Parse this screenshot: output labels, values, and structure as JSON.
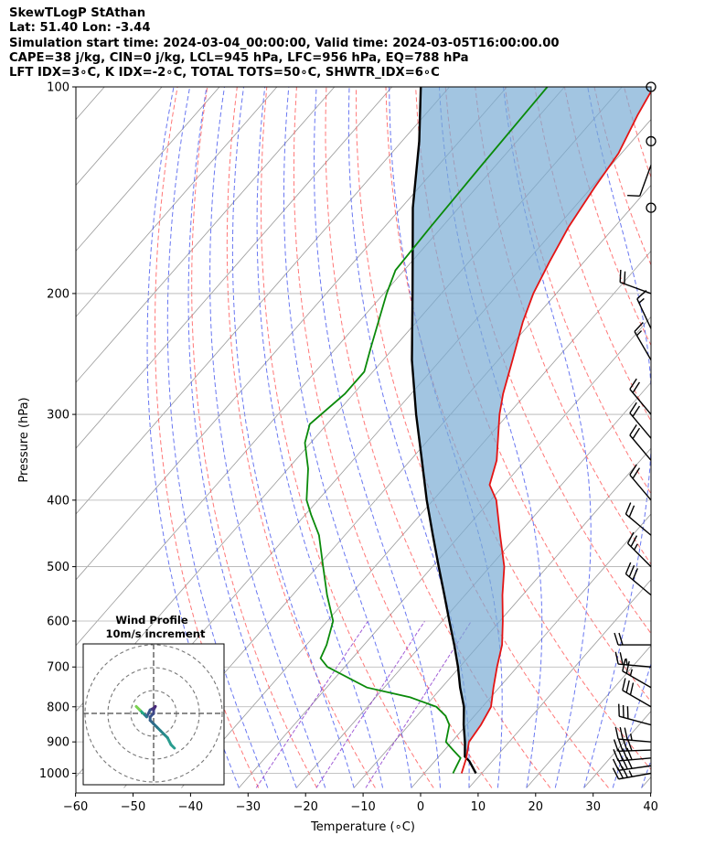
{
  "header": {
    "line1": "SkewTLogP StAthan",
    "line2": "Lat: 51.40   Lon: -3.44",
    "line3": "Simulation start time: 2024-03-04_00:00:00, Valid time: 2024-03-05T16:00:00.00",
    "line4": "CAPE=38 j/kg, CIN=0 j/kg, LCL=945 hPa, LFC=956 hPa, EQ=788 hPa",
    "line5": "LFT IDX=3∘C, K IDX=-2∘C, TOTAL TOTS=50∘C, SHWTR_IDX=6∘C"
  },
  "chart_data": {
    "type": "line",
    "xlabel": "Temperature (∘C)",
    "ylabel": "Pressure (hPa)",
    "xlim": [
      -60,
      40
    ],
    "ylim": [
      1050,
      100
    ],
    "y_scale": "log",
    "x_ticks": [
      "−60",
      "−50",
      "−40",
      "−30",
      "−20",
      "−10",
      "0",
      "10",
      "20",
      "30",
      "40"
    ],
    "y_ticks": [
      "1000",
      "900",
      "800",
      "700",
      "600",
      "500",
      "400",
      "300",
      "200",
      "100"
    ],
    "grid": true,
    "colors": {
      "temperature": "#e41414",
      "dewpoint": "#0a8a0a",
      "parcel": "#000000",
      "cape_fill": "#7aadd4",
      "dry_adiabats": "#ff5555",
      "moist_adiabats": "#4455ee",
      "mixing_ratio": "#8833cc",
      "isotherms": "#999999"
    },
    "series": [
      {
        "name": "temperature",
        "points": [
          {
            "p": 1000,
            "t": 6.5
          },
          {
            "p": 950,
            "t": 5.0
          },
          {
            "p": 900,
            "t": 3.0
          },
          {
            "p": 850,
            "t": 2.5
          },
          {
            "p": 800,
            "t": 1.5
          },
          {
            "p": 750,
            "t": -1.0
          },
          {
            "p": 700,
            "t": -3.5
          },
          {
            "p": 650,
            "t": -6.0
          },
          {
            "p": 600,
            "t": -9.5
          },
          {
            "p": 550,
            "t": -13.5
          },
          {
            "p": 500,
            "t": -17.5
          },
          {
            "p": 450,
            "t": -23.0
          },
          {
            "p": 400,
            "t": -29.0
          },
          {
            "p": 380,
            "t": -32.5
          },
          {
            "p": 350,
            "t": -35.0
          },
          {
            "p": 300,
            "t": -41.5
          },
          {
            "p": 280,
            "t": -44.0
          },
          {
            "p": 250,
            "t": -47.5
          },
          {
            "p": 220,
            "t": -51.5
          },
          {
            "p": 200,
            "t": -54.0
          },
          {
            "p": 180,
            "t": -56.0
          },
          {
            "p": 160,
            "t": -58.0
          },
          {
            "p": 140,
            "t": -59.5
          },
          {
            "p": 125,
            "t": -60.5
          },
          {
            "p": 110,
            "t": -63.0
          },
          {
            "p": 100,
            "t": -64.5
          }
        ]
      },
      {
        "name": "dewpoint",
        "points": [
          {
            "p": 1000,
            "t": 5.0
          },
          {
            "p": 975,
            "t": 4.5
          },
          {
            "p": 950,
            "t": 4.0
          },
          {
            "p": 925,
            "t": 1.5
          },
          {
            "p": 900,
            "t": -1.0
          },
          {
            "p": 850,
            "t": -3.0
          },
          {
            "p": 825,
            "t": -5.0
          },
          {
            "p": 800,
            "t": -8.0
          },
          {
            "p": 775,
            "t": -14.0
          },
          {
            "p": 750,
            "t": -23.0
          },
          {
            "p": 700,
            "t": -33.0
          },
          {
            "p": 680,
            "t": -35.5
          },
          {
            "p": 650,
            "t": -36.5
          },
          {
            "p": 600,
            "t": -39.0
          },
          {
            "p": 550,
            "t": -44.0
          },
          {
            "p": 500,
            "t": -49.0
          },
          {
            "p": 450,
            "t": -54.5
          },
          {
            "p": 420,
            "t": -59.0
          },
          {
            "p": 400,
            "t": -62.0
          },
          {
            "p": 360,
            "t": -66.5
          },
          {
            "p": 330,
            "t": -71.0
          },
          {
            "p": 310,
            "t": -73.0
          },
          {
            "p": 280,
            "t": -71.5
          },
          {
            "p": 260,
            "t": -71.5
          },
          {
            "p": 240,
            "t": -74.0
          },
          {
            "p": 200,
            "t": -79.5
          },
          {
            "p": 185,
            "t": -81.5
          },
          {
            "p": 160,
            "t": -82.0
          },
          {
            "p": 130,
            "t": -82.5
          },
          {
            "p": 100,
            "t": -83.0
          }
        ]
      },
      {
        "name": "parcel",
        "points": [
          {
            "p": 1000,
            "t": 9.0
          },
          {
            "p": 960,
            "t": 6.0
          },
          {
            "p": 945,
            "t": 4.5
          },
          {
            "p": 900,
            "t": 2.3
          },
          {
            "p": 850,
            "t": -0.5
          },
          {
            "p": 800,
            "t": -3.2
          },
          {
            "p": 750,
            "t": -6.8
          },
          {
            "p": 700,
            "t": -10.3
          },
          {
            "p": 650,
            "t": -14.3
          },
          {
            "p": 600,
            "t": -18.8
          },
          {
            "p": 550,
            "t": -23.6
          },
          {
            "p": 500,
            "t": -28.9
          },
          {
            "p": 450,
            "t": -34.7
          },
          {
            "p": 400,
            "t": -41.1
          },
          {
            "p": 350,
            "t": -48.0
          },
          {
            "p": 300,
            "t": -56.0
          },
          {
            "p": 250,
            "t": -65.0
          },
          {
            "p": 200,
            "t": -75.0
          },
          {
            "p": 150,
            "t": -88.0
          },
          {
            "p": 120,
            "t": -97.0
          },
          {
            "p": 100,
            "t": -105.0
          }
        ]
      }
    ],
    "wind_barbs": [
      {
        "p": 1000,
        "dir": 260,
        "spd": 35
      },
      {
        "p": 975,
        "dir": 262,
        "spd": 40
      },
      {
        "p": 950,
        "dir": 265,
        "spd": 40
      },
      {
        "p": 925,
        "dir": 268,
        "spd": 40
      },
      {
        "p": 900,
        "dir": 275,
        "spd": 35
      },
      {
        "p": 850,
        "dir": 285,
        "spd": 30
      },
      {
        "p": 800,
        "dir": 300,
        "spd": 30
      },
      {
        "p": 750,
        "dir": 300,
        "spd": 25
      },
      {
        "p": 700,
        "dir": 275,
        "spd": 25
      },
      {
        "p": 650,
        "dir": 270,
        "spd": 20
      },
      {
        "p": 550,
        "dir": 310,
        "spd": 30
      },
      {
        "p": 500,
        "dir": 315,
        "spd": 25
      },
      {
        "p": 450,
        "dir": 310,
        "spd": 20
      },
      {
        "p": 400,
        "dir": 320,
        "spd": 20
      },
      {
        "p": 350,
        "dir": 320,
        "spd": 20
      },
      {
        "p": 325,
        "dir": 320,
        "spd": 20
      },
      {
        "p": 300,
        "dir": 320,
        "spd": 20
      },
      {
        "p": 250,
        "dir": 330,
        "spd": 15
      },
      {
        "p": 225,
        "dir": 335,
        "spd": 15
      },
      {
        "p": 200,
        "dir": 290,
        "spd": 20
      },
      {
        "p": 150,
        "dir": 0,
        "spd": 0
      },
      {
        "p": 130,
        "dir": 200,
        "spd": 10
      },
      {
        "p": 120,
        "dir": 0,
        "spd": 0
      },
      {
        "p": 100,
        "dir": 0,
        "spd": 0
      }
    ],
    "inset": {
      "title": "Wind Profile",
      "subtitle": "10m/s increment",
      "hodograph_uv": [
        [
          6,
          -10
        ],
        [
          5,
          -9
        ],
        [
          4,
          -7
        ],
        [
          3,
          -6
        ],
        [
          2,
          -5
        ],
        [
          1,
          -4
        ],
        [
          0,
          -3
        ],
        [
          -1,
          -2
        ],
        [
          -1,
          -1
        ],
        [
          0,
          0
        ],
        [
          0,
          1
        ],
        [
          0.5,
          2
        ],
        [
          0,
          1.5
        ],
        [
          -1,
          1
        ],
        [
          -2,
          -1
        ],
        [
          -3,
          0
        ],
        [
          -4,
          1
        ],
        [
          -5,
          2
        ]
      ]
    }
  }
}
